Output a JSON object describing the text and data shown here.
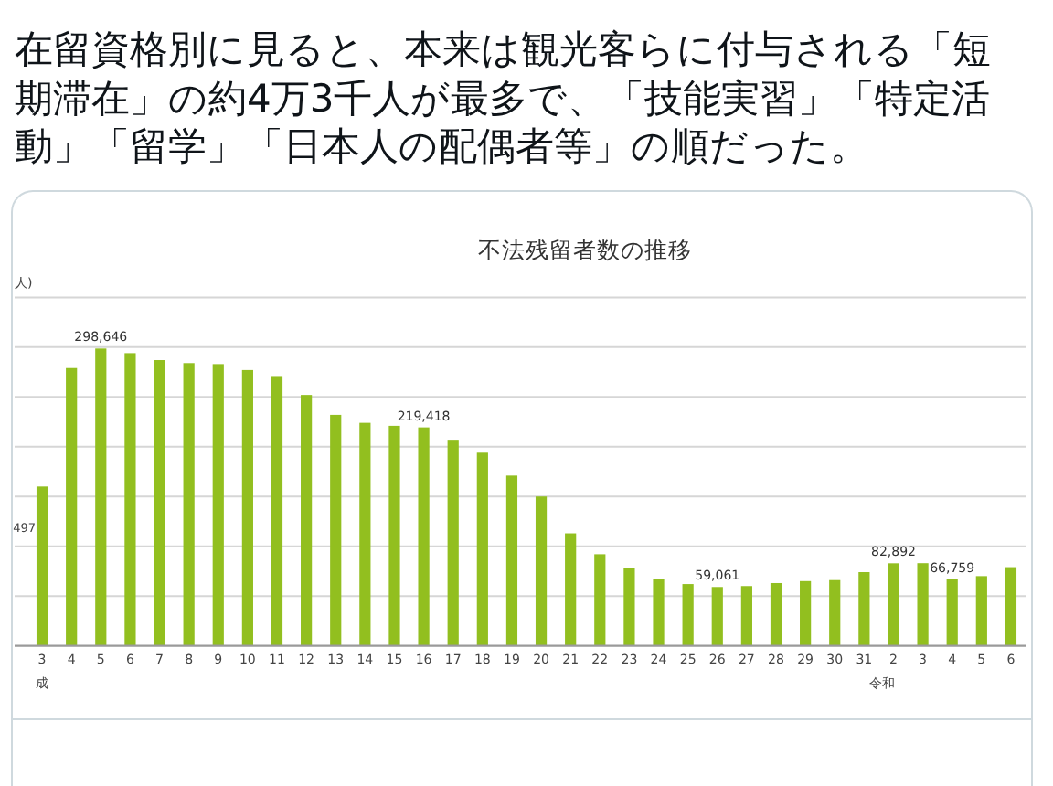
{
  "chart_data": {
    "type": "bar",
    "title": "不法残留者数の推移",
    "ylabel": "人)",
    "categories": [
      "3",
      "4",
      "5",
      "6",
      "7",
      "8",
      "9",
      "10",
      "11",
      "12",
      "13",
      "14",
      "15",
      "16",
      "17",
      "18",
      "19",
      "20",
      "21",
      "22",
      "23",
      "24",
      "25",
      "26",
      "27",
      "28",
      "29",
      "30",
      "31",
      "2",
      "3",
      "4",
      "5",
      "6"
    ],
    "values": [
      160000,
      279000,
      298646,
      294000,
      287000,
      284000,
      283000,
      277000,
      271000,
      252000,
      232000,
      224000,
      221000,
      219418,
      207000,
      194000,
      171000,
      150000,
      113000,
      92000,
      78000,
      67000,
      62000,
      59061,
      60000,
      63000,
      65000,
      66000,
      74000,
      82892,
      83000,
      66759,
      70000,
      79000
    ],
    "value_labels": [
      null,
      null,
      "298,646",
      null,
      null,
      null,
      null,
      null,
      null,
      null,
      null,
      null,
      null,
      "219,418",
      null,
      null,
      null,
      null,
      null,
      null,
      null,
      null,
      null,
      "59,061",
      null,
      null,
      null,
      null,
      null,
      "82,892",
      null,
      "66,759",
      null,
      null
    ],
    "color": "#92bf1f",
    "ylim": [
      0,
      350000
    ],
    "yticks": [
      {
        "value": 0,
        "label": null
      },
      {
        "value": 50000,
        "label": null
      },
      {
        "value": 100000,
        "label": null
      },
      {
        "value": 150000,
        "label": null
      },
      {
        "value": 200000,
        "label": null
      },
      {
        "value": 250000,
        "label": null
      },
      {
        "value": 300000,
        "label": null
      },
      {
        "value": 350000,
        "label": null
      }
    ],
    "tick_labels": "x",
    "grid": "y",
    "annotations": [
      "在留資格別に見ると、本来は観光客らに付与される「短期滞在」の約4万3千人が最多で、「技能実習」「特定活動」「留学」「日本人の配偶者等」の順だった。",
      "497",
      "成",
      "令和"
    ]
  }
}
